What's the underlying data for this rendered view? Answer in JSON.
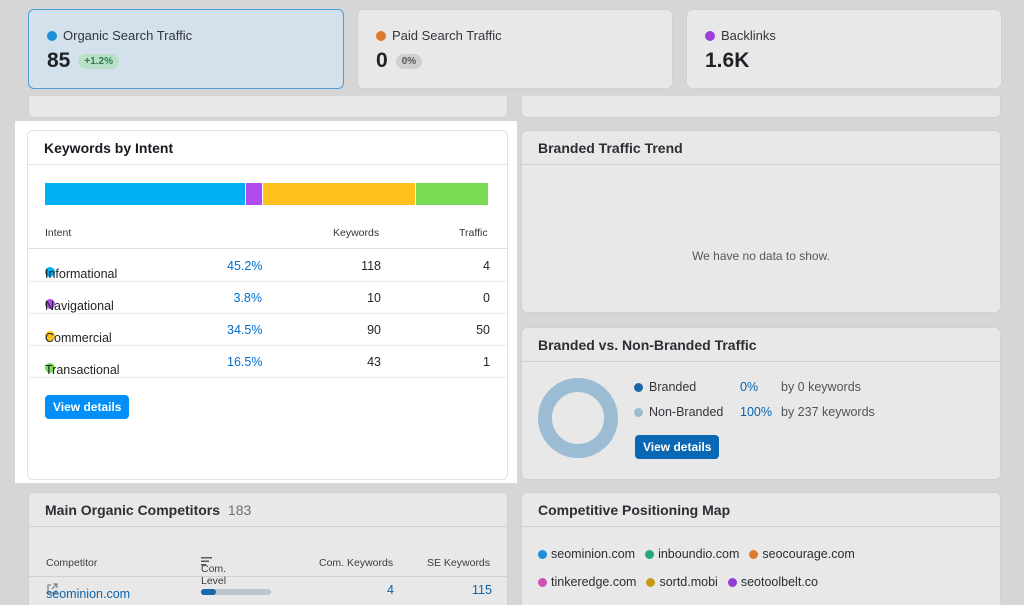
{
  "metrics": [
    {
      "label": "Organic Search Traffic",
      "value": "85",
      "badge": "+1.2%",
      "dot": "#1e8fd6"
    },
    {
      "label": "Paid Search Traffic",
      "value": "0",
      "badge": "0%",
      "dot": "#dd7a2b"
    },
    {
      "label": "Backlinks",
      "value": "1.6K",
      "dot": "#9a3fd8"
    }
  ],
  "intent": {
    "title": "Keywords by Intent",
    "headers": {
      "intent": "Intent",
      "keywords": "Keywords",
      "traffic": "Traffic"
    },
    "rows": [
      {
        "name": "Informational",
        "pct": "45.2%",
        "share": 45.2,
        "keywords": "118",
        "traffic": "4",
        "color": "#00b0f5"
      },
      {
        "name": "Navigational",
        "pct": "3.8%",
        "share": 3.8,
        "keywords": "10",
        "traffic": "0",
        "color": "#b04bf0"
      },
      {
        "name": "Commercial",
        "pct": "34.5%",
        "share": 34.5,
        "keywords": "90",
        "traffic": "50",
        "color": "#ffc11e"
      },
      {
        "name": "Transactional",
        "pct": "16.5%",
        "share": 16.5,
        "keywords": "43",
        "traffic": "1",
        "color": "#78dc55"
      }
    ],
    "button": "View details"
  },
  "branded_trend": {
    "title": "Branded Traffic Trend",
    "empty": "We have no data to show."
  },
  "branded_split": {
    "title": "Branded vs. Non-Branded Traffic",
    "items": [
      {
        "label": "Branded",
        "pct": "0%",
        "keywords": "by 0 keywords",
        "color": "#1a67a8"
      },
      {
        "label": "Non-Branded",
        "pct": "100%",
        "keywords": "by 237 keywords",
        "color": "#9bbcd2"
      }
    ],
    "button": "View details"
  },
  "competitors": {
    "title": "Main Organic Competitors",
    "count": "183",
    "headers": {
      "competitor": "Competitor",
      "level": "Com. Level",
      "com_keywords": "Com. Keywords",
      "se_keywords": "SE Keywords"
    },
    "rows": [
      {
        "domain": "seominion.com",
        "level": 0.22,
        "com_keywords": "4",
        "se_keywords": "115"
      }
    ]
  },
  "positioning": {
    "title": "Competitive Positioning Map",
    "domains": [
      {
        "name": "seominion.com",
        "color": "#1e8fd6"
      },
      {
        "name": "inboundio.com",
        "color": "#27a882"
      },
      {
        "name": "seocourage.com",
        "color": "#dd7a2b"
      },
      {
        "name": "tinkeredge.com",
        "color": "#d24fb7"
      },
      {
        "name": "sortd.mobi",
        "color": "#c89a18"
      },
      {
        "name": "seotoolbelt.co",
        "color": "#8e3ed6"
      }
    ]
  }
}
